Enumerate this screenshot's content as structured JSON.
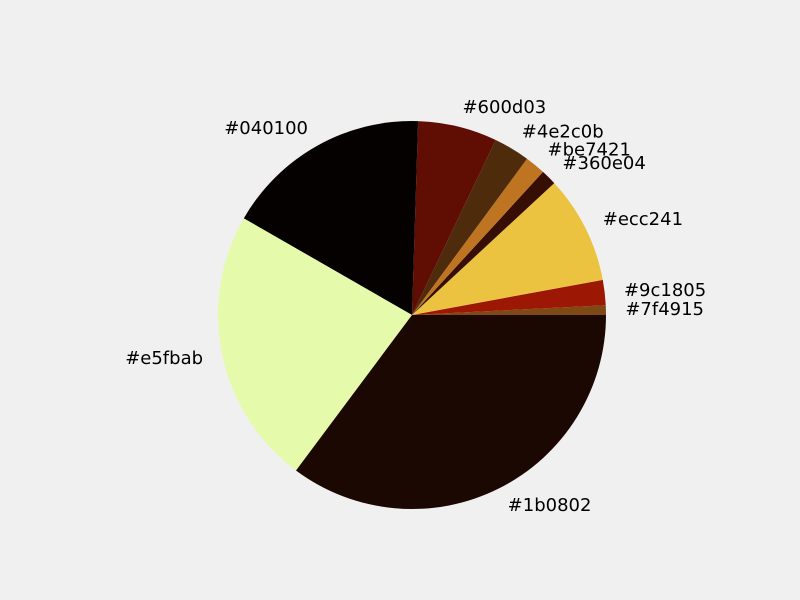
{
  "chart_data": {
    "type": "pie",
    "title": "",
    "labels": [
      "#7f4915",
      "#9c1805",
      "#ecc241",
      "#360e04",
      "#be7421",
      "#4e2c0b",
      "#600d03",
      "#040100",
      "#e5fbab",
      "#1b0802"
    ],
    "values": [
      0.8,
      2.1,
      9.0,
      1.3,
      1.7,
      3.0,
      6.6,
      17.2,
      23.1,
      35.2
    ],
    "colors": [
      "#7f4915",
      "#9c1805",
      "#ecc241",
      "#360e04",
      "#be7421",
      "#4e2c0b",
      "#600d03",
      "#040100",
      "#e5fbab",
      "#1b0802"
    ],
    "start_angle_deg": 0,
    "direction": "clockwise-on-screen",
    "legend": "none"
  }
}
